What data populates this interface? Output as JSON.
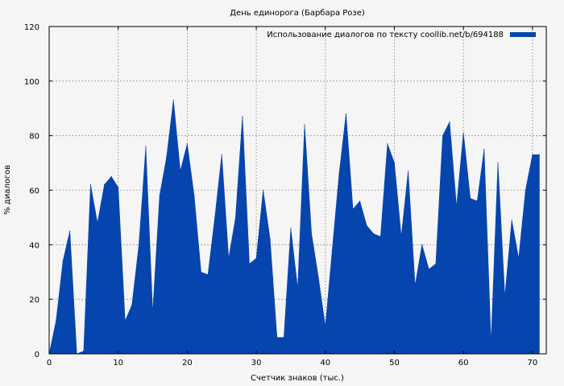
{
  "chart_data": {
    "type": "area",
    "title": "День единорога (Барбара Розе)",
    "xlabel": "Счетчик знаков (тыс.)",
    "ylabel": "% диалогов",
    "xlim": [
      0,
      72
    ],
    "ylim": [
      0,
      120
    ],
    "x_ticks": [
      0,
      10,
      20,
      30,
      40,
      50,
      60,
      70
    ],
    "y_ticks": [
      0,
      20,
      40,
      60,
      80,
      100,
      120
    ],
    "grid": true,
    "legend_position": "top-right",
    "series": [
      {
        "name": "Использование диалогов по тексту coollib.net/b/694188",
        "color": "#0645ad",
        "x": [
          0,
          1,
          2,
          3,
          4,
          5,
          6,
          7,
          8,
          9,
          10,
          11,
          12,
          13,
          14,
          15,
          16,
          17,
          18,
          19,
          20,
          21,
          22,
          23,
          24,
          25,
          26,
          27,
          28,
          29,
          30,
          31,
          32,
          33,
          34,
          35,
          36,
          37,
          38,
          39,
          40,
          41,
          42,
          43,
          44,
          45,
          46,
          47,
          48,
          49,
          50,
          51,
          52,
          53,
          54,
          55,
          56,
          57,
          58,
          59,
          60,
          61,
          62,
          63,
          64,
          65,
          66,
          67,
          68,
          69,
          70,
          71
        ],
        "values": [
          0,
          12,
          34,
          45,
          0,
          1,
          62,
          48,
          62,
          65,
          61,
          12,
          18,
          40,
          76,
          15,
          58,
          72,
          93,
          67,
          77,
          58,
          30,
          29,
          50,
          73,
          35,
          50,
          87,
          33,
          35,
          60,
          42,
          6,
          6,
          46,
          24,
          84,
          44,
          28,
          10,
          38,
          66,
          88,
          53,
          56,
          47,
          44,
          43,
          77,
          70,
          43,
          67,
          25,
          40,
          31,
          33,
          80,
          85,
          54,
          81,
          57,
          56,
          75,
          4,
          70,
          21,
          49,
          35,
          60,
          73,
          73
        ]
      }
    ]
  }
}
